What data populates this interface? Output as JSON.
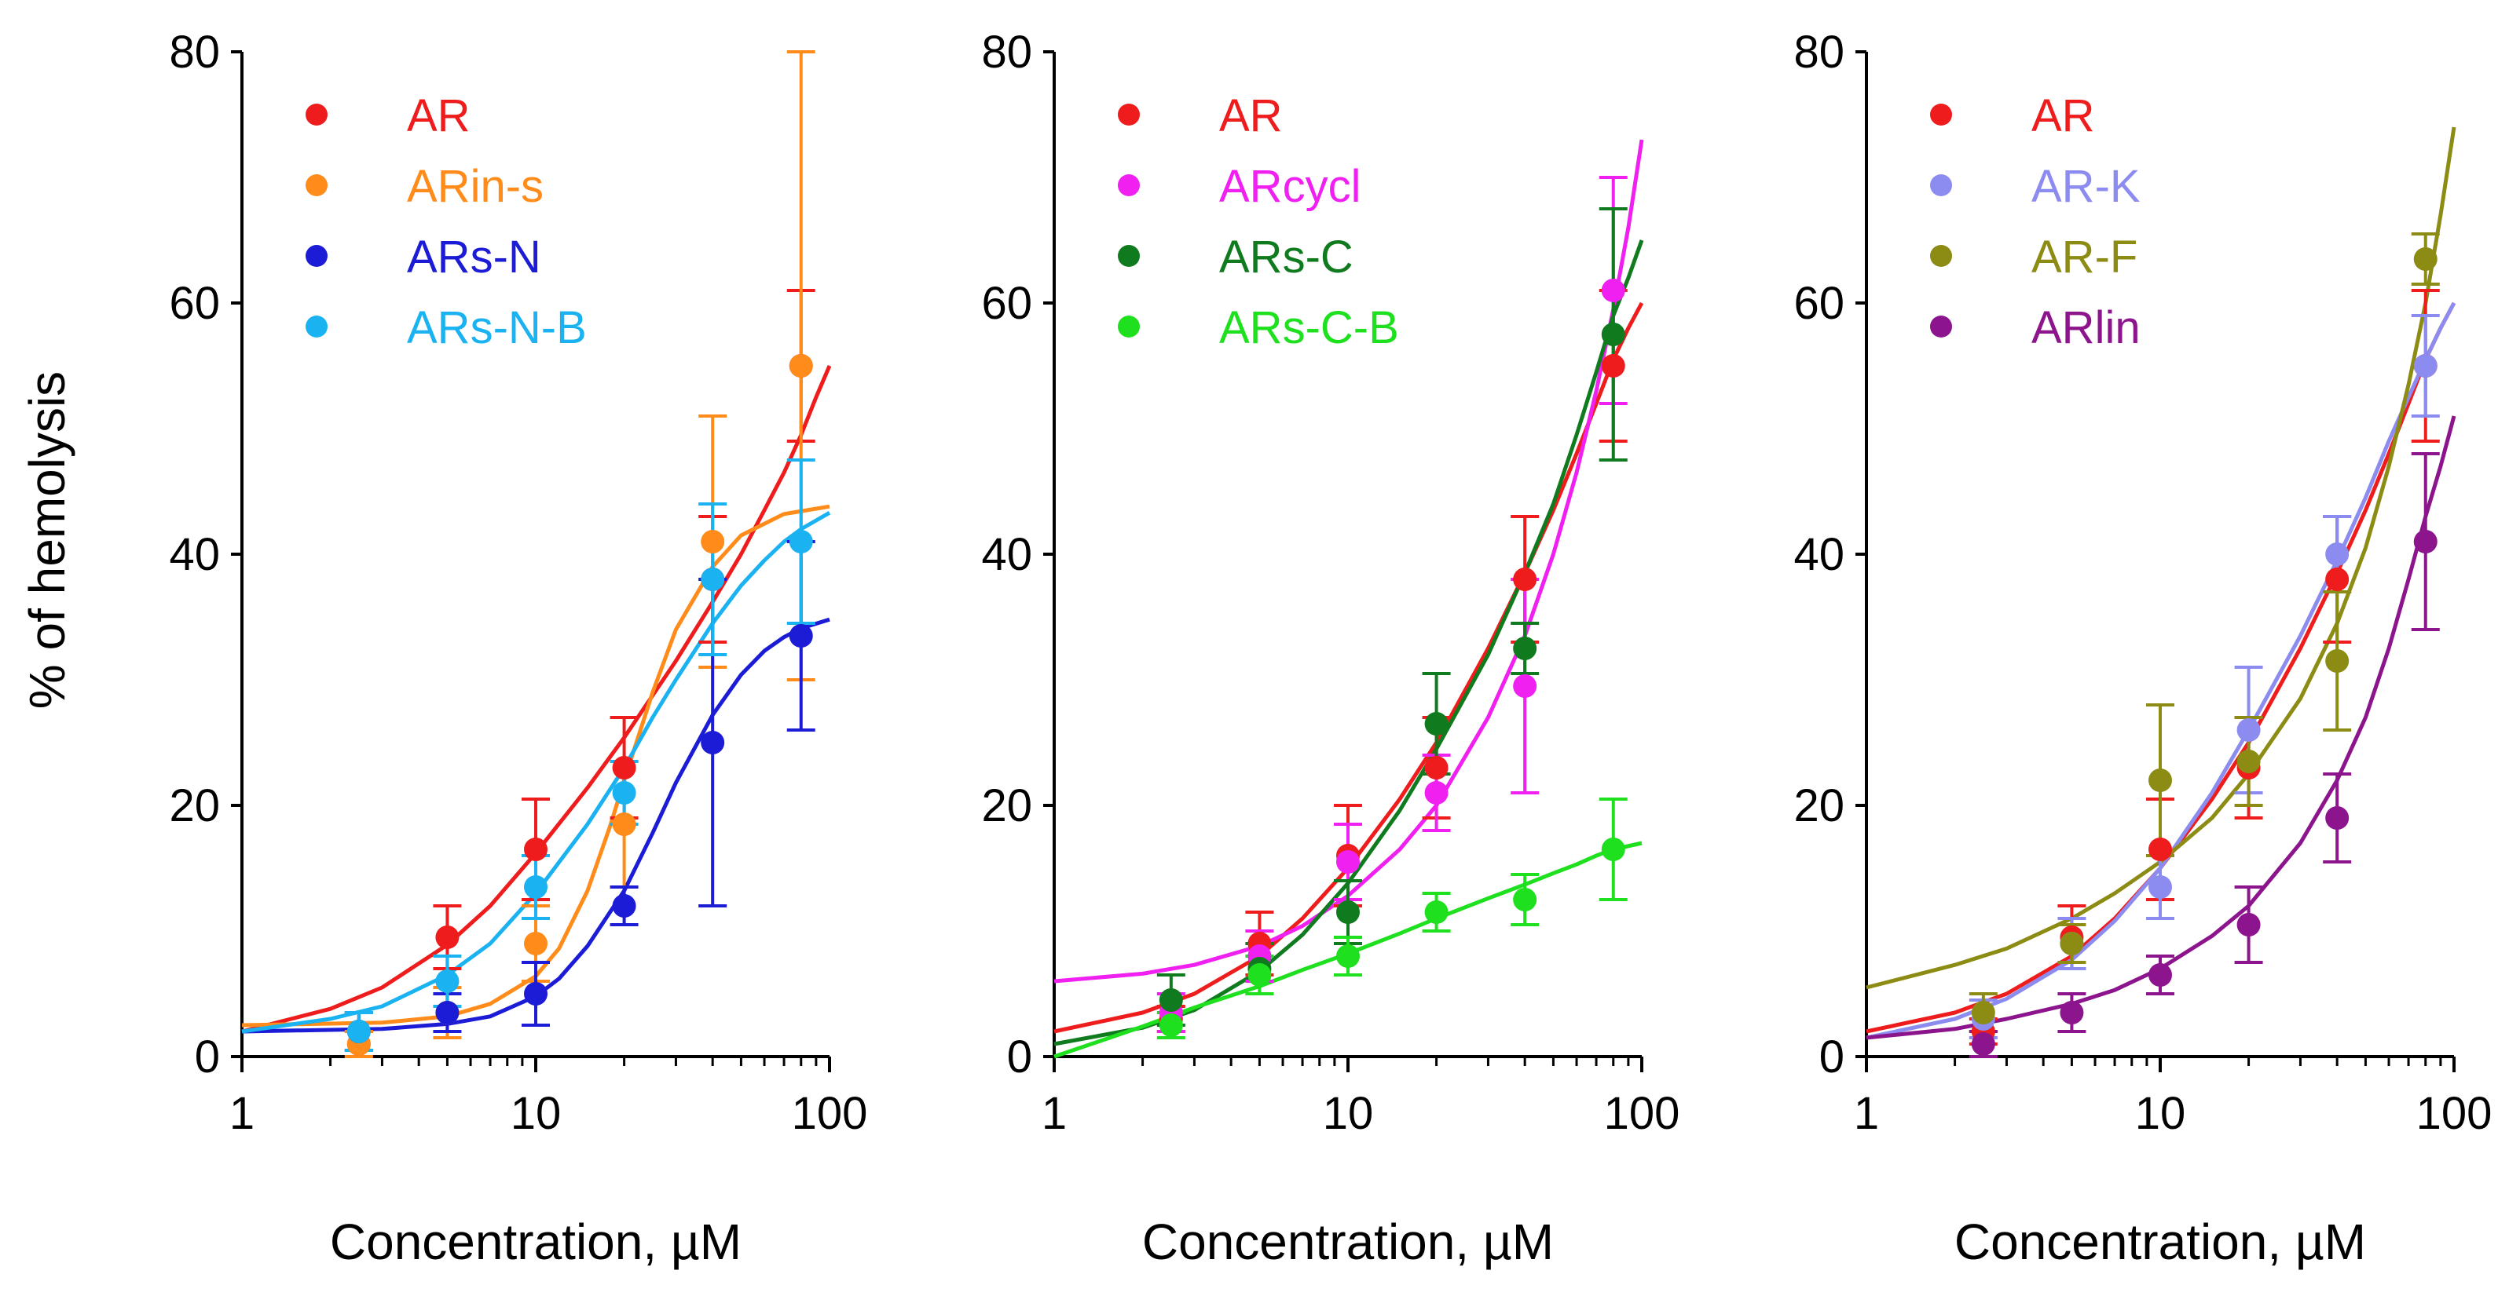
{
  "ylabel": "% of hemolysis",
  "chart_data": [
    {
      "type": "scatter",
      "title": "",
      "xlabel": "Concentration, µM",
      "xscale": "log",
      "xlim": [
        1,
        100
      ],
      "ylim": [
        0,
        80
      ],
      "xticks": [
        1,
        10,
        100
      ],
      "yticks": [
        0,
        20,
        40,
        60,
        80
      ],
      "xtick_labels": [
        "1",
        "10",
        "100"
      ],
      "ytick_labels": [
        "0",
        "20",
        "40",
        "60",
        "80"
      ],
      "legend_position": "top-left",
      "x": [
        2.5,
        5,
        10,
        20,
        40,
        80
      ],
      "series": [
        {
          "name": "AR",
          "color": "#ee1c1c",
          "values": [
            1.0,
            9.5,
            16.5,
            23.0,
            38.0,
            55.0
          ],
          "errors": [
            1.0,
            2.5,
            4.0,
            4.0,
            5.0,
            6.0
          ],
          "fit": [
            [
              1,
              2.0
            ],
            [
              2,
              3.8
            ],
            [
              3,
              5.5
            ],
            [
              5,
              8.9
            ],
            [
              7,
              12.0
            ],
            [
              10,
              16.2
            ],
            [
              15,
              21.4
            ],
            [
              20,
              25.4
            ],
            [
              30,
              31.5
            ],
            [
              40,
              36.2
            ],
            [
              50,
              40.0
            ],
            [
              60,
              43.5
            ],
            [
              70,
              46.5
            ],
            [
              80,
              49.5
            ],
            [
              90,
              52.5
            ],
            [
              100,
              55.0
            ]
          ]
        },
        {
          "name": "ARin-s",
          "color": "#ff8c1a",
          "values": [
            1.0,
            3.5,
            9.0,
            18.5,
            41.0,
            55.0
          ],
          "errors": [
            1.0,
            2.0,
            3.0,
            5.0,
            10.0,
            25.0
          ],
          "fit": [
            [
              1,
              2.5
            ],
            [
              3,
              2.7
            ],
            [
              5,
              3.2
            ],
            [
              7,
              4.2
            ],
            [
              10,
              6.4
            ],
            [
              12,
              8.6
            ],
            [
              15,
              13.2
            ],
            [
              18,
              18.5
            ],
            [
              20,
              22.0
            ],
            [
              25,
              29.0
            ],
            [
              30,
              34.0
            ],
            [
              40,
              39.0
            ],
            [
              50,
              41.5
            ],
            [
              70,
              43.2
            ],
            [
              100,
              43.8
            ]
          ]
        },
        {
          "name": "ARs-N",
          "color": "#1c1cd6",
          "values": [
            2.0,
            3.5,
            5.0,
            12.0,
            25.0,
            33.5
          ],
          "errors": [
            1.5,
            1.5,
            2.5,
            1.5,
            13.0,
            7.5
          ],
          "fit": [
            [
              1,
              2.0
            ],
            [
              3,
              2.2
            ],
            [
              5,
              2.6
            ],
            [
              7,
              3.2
            ],
            [
              10,
              4.8
            ],
            [
              12,
              6.2
            ],
            [
              15,
              8.8
            ],
            [
              20,
              13.2
            ],
            [
              25,
              17.8
            ],
            [
              30,
              21.8
            ],
            [
              40,
              27.2
            ],
            [
              50,
              30.4
            ],
            [
              60,
              32.3
            ],
            [
              70,
              33.4
            ],
            [
              80,
              34.1
            ],
            [
              100,
              34.8
            ]
          ]
        },
        {
          "name": "ARs-N-B",
          "color": "#1ab2f0",
          "values": [
            2.0,
            6.0,
            13.5,
            21.0,
            38.0,
            41.0
          ],
          "errors": [
            1.5,
            2.0,
            2.5,
            2.5,
            6.0,
            6.5
          ],
          "fit": [
            [
              1,
              2.0
            ],
            [
              2,
              3.0
            ],
            [
              3,
              4.0
            ],
            [
              5,
              6.5
            ],
            [
              7,
              9.0
            ],
            [
              10,
              13.0
            ],
            [
              15,
              18.5
            ],
            [
              20,
              23.0
            ],
            [
              25,
              27.0
            ],
            [
              30,
              30.0
            ],
            [
              40,
              34.5
            ],
            [
              50,
              37.5
            ],
            [
              60,
              39.5
            ],
            [
              70,
              41.0
            ],
            [
              80,
              42.0
            ],
            [
              100,
              43.3
            ]
          ]
        }
      ]
    },
    {
      "type": "scatter",
      "title": "",
      "xlabel": "Concentration, µM",
      "xscale": "log",
      "xlim": [
        1,
        100
      ],
      "ylim": [
        0,
        80
      ],
      "xticks": [
        1,
        10,
        100
      ],
      "yticks": [
        0,
        20,
        40,
        60,
        80
      ],
      "xtick_labels": [
        "1",
        "10",
        "100"
      ],
      "ytick_labels": [
        "0",
        "20",
        "40",
        "60",
        "80"
      ],
      "legend_position": "top-left",
      "x": [
        2.5,
        5,
        10,
        20,
        40,
        80
      ],
      "series": [
        {
          "name": "AR",
          "color": "#ee1c1c",
          "values": [
            3.0,
            9.0,
            16.0,
            23.0,
            38.0,
            55.0
          ],
          "errors": [
            1.0,
            2.5,
            4.0,
            4.0,
            5.0,
            6.0
          ],
          "fit": [
            [
              1,
              2.0
            ],
            [
              2,
              3.5
            ],
            [
              3,
              5.0
            ],
            [
              5,
              8.0
            ],
            [
              7,
              11.0
            ],
            [
              10,
              15.0
            ],
            [
              15,
              20.5
            ],
            [
              20,
              25.0
            ],
            [
              30,
              32.5
            ],
            [
              40,
              38.5
            ],
            [
              50,
              43.5
            ],
            [
              60,
              48.0
            ],
            [
              70,
              52.0
            ],
            [
              80,
              55.5
            ],
            [
              90,
              58.0
            ],
            [
              100,
              60.0
            ]
          ]
        },
        {
          "name": "ARcycl",
          "color": "#f020f0",
          "values": [
            3.5,
            8.0,
            15.5,
            21.0,
            29.5,
            61.0
          ],
          "errors": [
            1.5,
            2.0,
            3.0,
            3.0,
            8.5,
            9.0
          ],
          "fit": [
            [
              1,
              6.0
            ],
            [
              2,
              6.6
            ],
            [
              3,
              7.3
            ],
            [
              5,
              8.8
            ],
            [
              7,
              10.4
            ],
            [
              10,
              12.8
            ],
            [
              15,
              16.5
            ],
            [
              20,
              20.0
            ],
            [
              30,
              27.0
            ],
            [
              40,
              33.5
            ],
            [
              50,
              40.0
            ],
            [
              60,
              46.5
            ],
            [
              70,
              53.0
            ],
            [
              80,
              59.5
            ],
            [
              90,
              66.0
            ],
            [
              100,
              73.0
            ]
          ]
        },
        {
          "name": "ARs-C",
          "color": "#0f7a1e",
          "values": [
            4.5,
            7.0,
            11.5,
            26.5,
            32.5,
            57.5
          ],
          "errors": [
            2.0,
            2.0,
            2.5,
            4.0,
            2.0,
            10.0
          ],
          "fit": [
            [
              1,
              1.0
            ],
            [
              2,
              2.3
            ],
            [
              3,
              3.7
            ],
            [
              5,
              6.8
            ],
            [
              7,
              9.7
            ],
            [
              10,
              13.8
            ],
            [
              15,
              19.6
            ],
            [
              20,
              24.5
            ],
            [
              30,
              32.0
            ],
            [
              40,
              38.5
            ],
            [
              50,
              44.0
            ],
            [
              60,
              49.5
            ],
            [
              70,
              54.5
            ],
            [
              80,
              59.0
            ],
            [
              90,
              62.0
            ],
            [
              100,
              65.0
            ]
          ]
        },
        {
          "name": "ARs-C-B",
          "color": "#1ee01e",
          "values": [
            2.5,
            6.5,
            8.0,
            11.5,
            12.5,
            16.5
          ],
          "errors": [
            1.0,
            1.5,
            1.5,
            1.5,
            2.0,
            4.0
          ],
          "fit": [
            [
              1,
              0.0
            ],
            [
              1.5,
              1.4
            ],
            [
              2,
              2.4
            ],
            [
              3,
              3.9
            ],
            [
              5,
              5.6
            ],
            [
              7,
              6.9
            ],
            [
              10,
              8.2
            ],
            [
              15,
              9.8
            ],
            [
              20,
              11.0
            ],
            [
              30,
              12.6
            ],
            [
              40,
              13.7
            ],
            [
              50,
              14.6
            ],
            [
              60,
              15.3
            ],
            [
              70,
              16.0
            ],
            [
              80,
              16.5
            ],
            [
              100,
              17.0
            ]
          ]
        }
      ]
    },
    {
      "type": "scatter",
      "title": "",
      "xlabel": "Concentration, µM",
      "xscale": "log",
      "xlim": [
        1,
        100
      ],
      "ylim": [
        0,
        80
      ],
      "xticks": [
        1,
        10,
        100
      ],
      "yticks": [
        0,
        20,
        40,
        60,
        80
      ],
      "xtick_labels": [
        "1",
        "10",
        "100"
      ],
      "ytick_labels": [
        "0",
        "20",
        "40",
        "60",
        "80"
      ],
      "legend_position": "top-left",
      "x": [
        2.5,
        5,
        10,
        20,
        40,
        80
      ],
      "series": [
        {
          "name": "AR",
          "color": "#ee1c1c",
          "values": [
            2.0,
            9.5,
            16.5,
            23.0,
            38.0,
            55.0
          ],
          "errors": [
            1.0,
            2.5,
            4.0,
            4.0,
            5.0,
            6.0
          ],
          "fit": [
            [
              1,
              2.0
            ],
            [
              2,
              3.5
            ],
            [
              3,
              5.0
            ],
            [
              5,
              8.0
            ],
            [
              7,
              11.0
            ],
            [
              10,
              15.0
            ],
            [
              15,
              20.5
            ],
            [
              20,
              25.0
            ],
            [
              30,
              32.5
            ],
            [
              40,
              38.5
            ],
            [
              50,
              43.5
            ],
            [
              60,
              48.0
            ],
            [
              70,
              52.0
            ],
            [
              80,
              55.5
            ],
            [
              90,
              58.0
            ],
            [
              100,
              60.0
            ]
          ]
        },
        {
          "name": "AR-K",
          "color": "#8c8cf0",
          "values": [
            3.0,
            9.0,
            13.5,
            26.0,
            40.0,
            55.0
          ],
          "errors": [
            1.5,
            2.0,
            2.5,
            5.0,
            3.0,
            4.0
          ],
          "fit": [
            [
              1,
              1.5
            ],
            [
              2,
              3.0
            ],
            [
              3,
              4.6
            ],
            [
              5,
              7.7
            ],
            [
              7,
              10.8
            ],
            [
              10,
              15.0
            ],
            [
              15,
              21.0
            ],
            [
              20,
              26.0
            ],
            [
              30,
              33.5
            ],
            [
              40,
              39.5
            ],
            [
              50,
              44.5
            ],
            [
              60,
              49.0
            ],
            [
              70,
              52.5
            ],
            [
              80,
              55.5
            ],
            [
              90,
              58.0
            ],
            [
              100,
              60.0
            ]
          ]
        },
        {
          "name": "AR-F",
          "color": "#8c8c14",
          "values": [
            3.5,
            9.0,
            22.0,
            23.5,
            31.5,
            63.5
          ],
          "errors": [
            1.5,
            1.5,
            6.0,
            3.5,
            5.5,
            2.0
          ],
          "fit": [
            [
              1,
              5.5
            ],
            [
              2,
              7.3
            ],
            [
              3,
              8.6
            ],
            [
              5,
              11.0
            ],
            [
              7,
              13.0
            ],
            [
              10,
              15.5
            ],
            [
              15,
              19.0
            ],
            [
              20,
              22.5
            ],
            [
              30,
              28.5
            ],
            [
              40,
              34.5
            ],
            [
              50,
              40.5
            ],
            [
              60,
              47.0
            ],
            [
              70,
              53.5
            ],
            [
              80,
              60.0
            ],
            [
              90,
              67.0
            ],
            [
              100,
              74.0
            ]
          ]
        },
        {
          "name": "ARlin",
          "color": "#8c148c",
          "values": [
            1.0,
            3.5,
            6.5,
            10.5,
            19.0,
            41.0
          ],
          "errors": [
            1.0,
            1.5,
            1.5,
            3.0,
            3.5,
            7.0
          ],
          "fit": [
            [
              1,
              1.5
            ],
            [
              2,
              2.2
            ],
            [
              3,
              3.0
            ],
            [
              5,
              4.2
            ],
            [
              7,
              5.3
            ],
            [
              10,
              7.0
            ],
            [
              15,
              9.6
            ],
            [
              20,
              12.0
            ],
            [
              30,
              17.0
            ],
            [
              40,
              22.0
            ],
            [
              50,
              27.0
            ],
            [
              60,
              32.5
            ],
            [
              70,
              38.0
            ],
            [
              80,
              43.0
            ],
            [
              90,
              47.0
            ],
            [
              100,
              51.0
            ]
          ]
        }
      ]
    }
  ]
}
